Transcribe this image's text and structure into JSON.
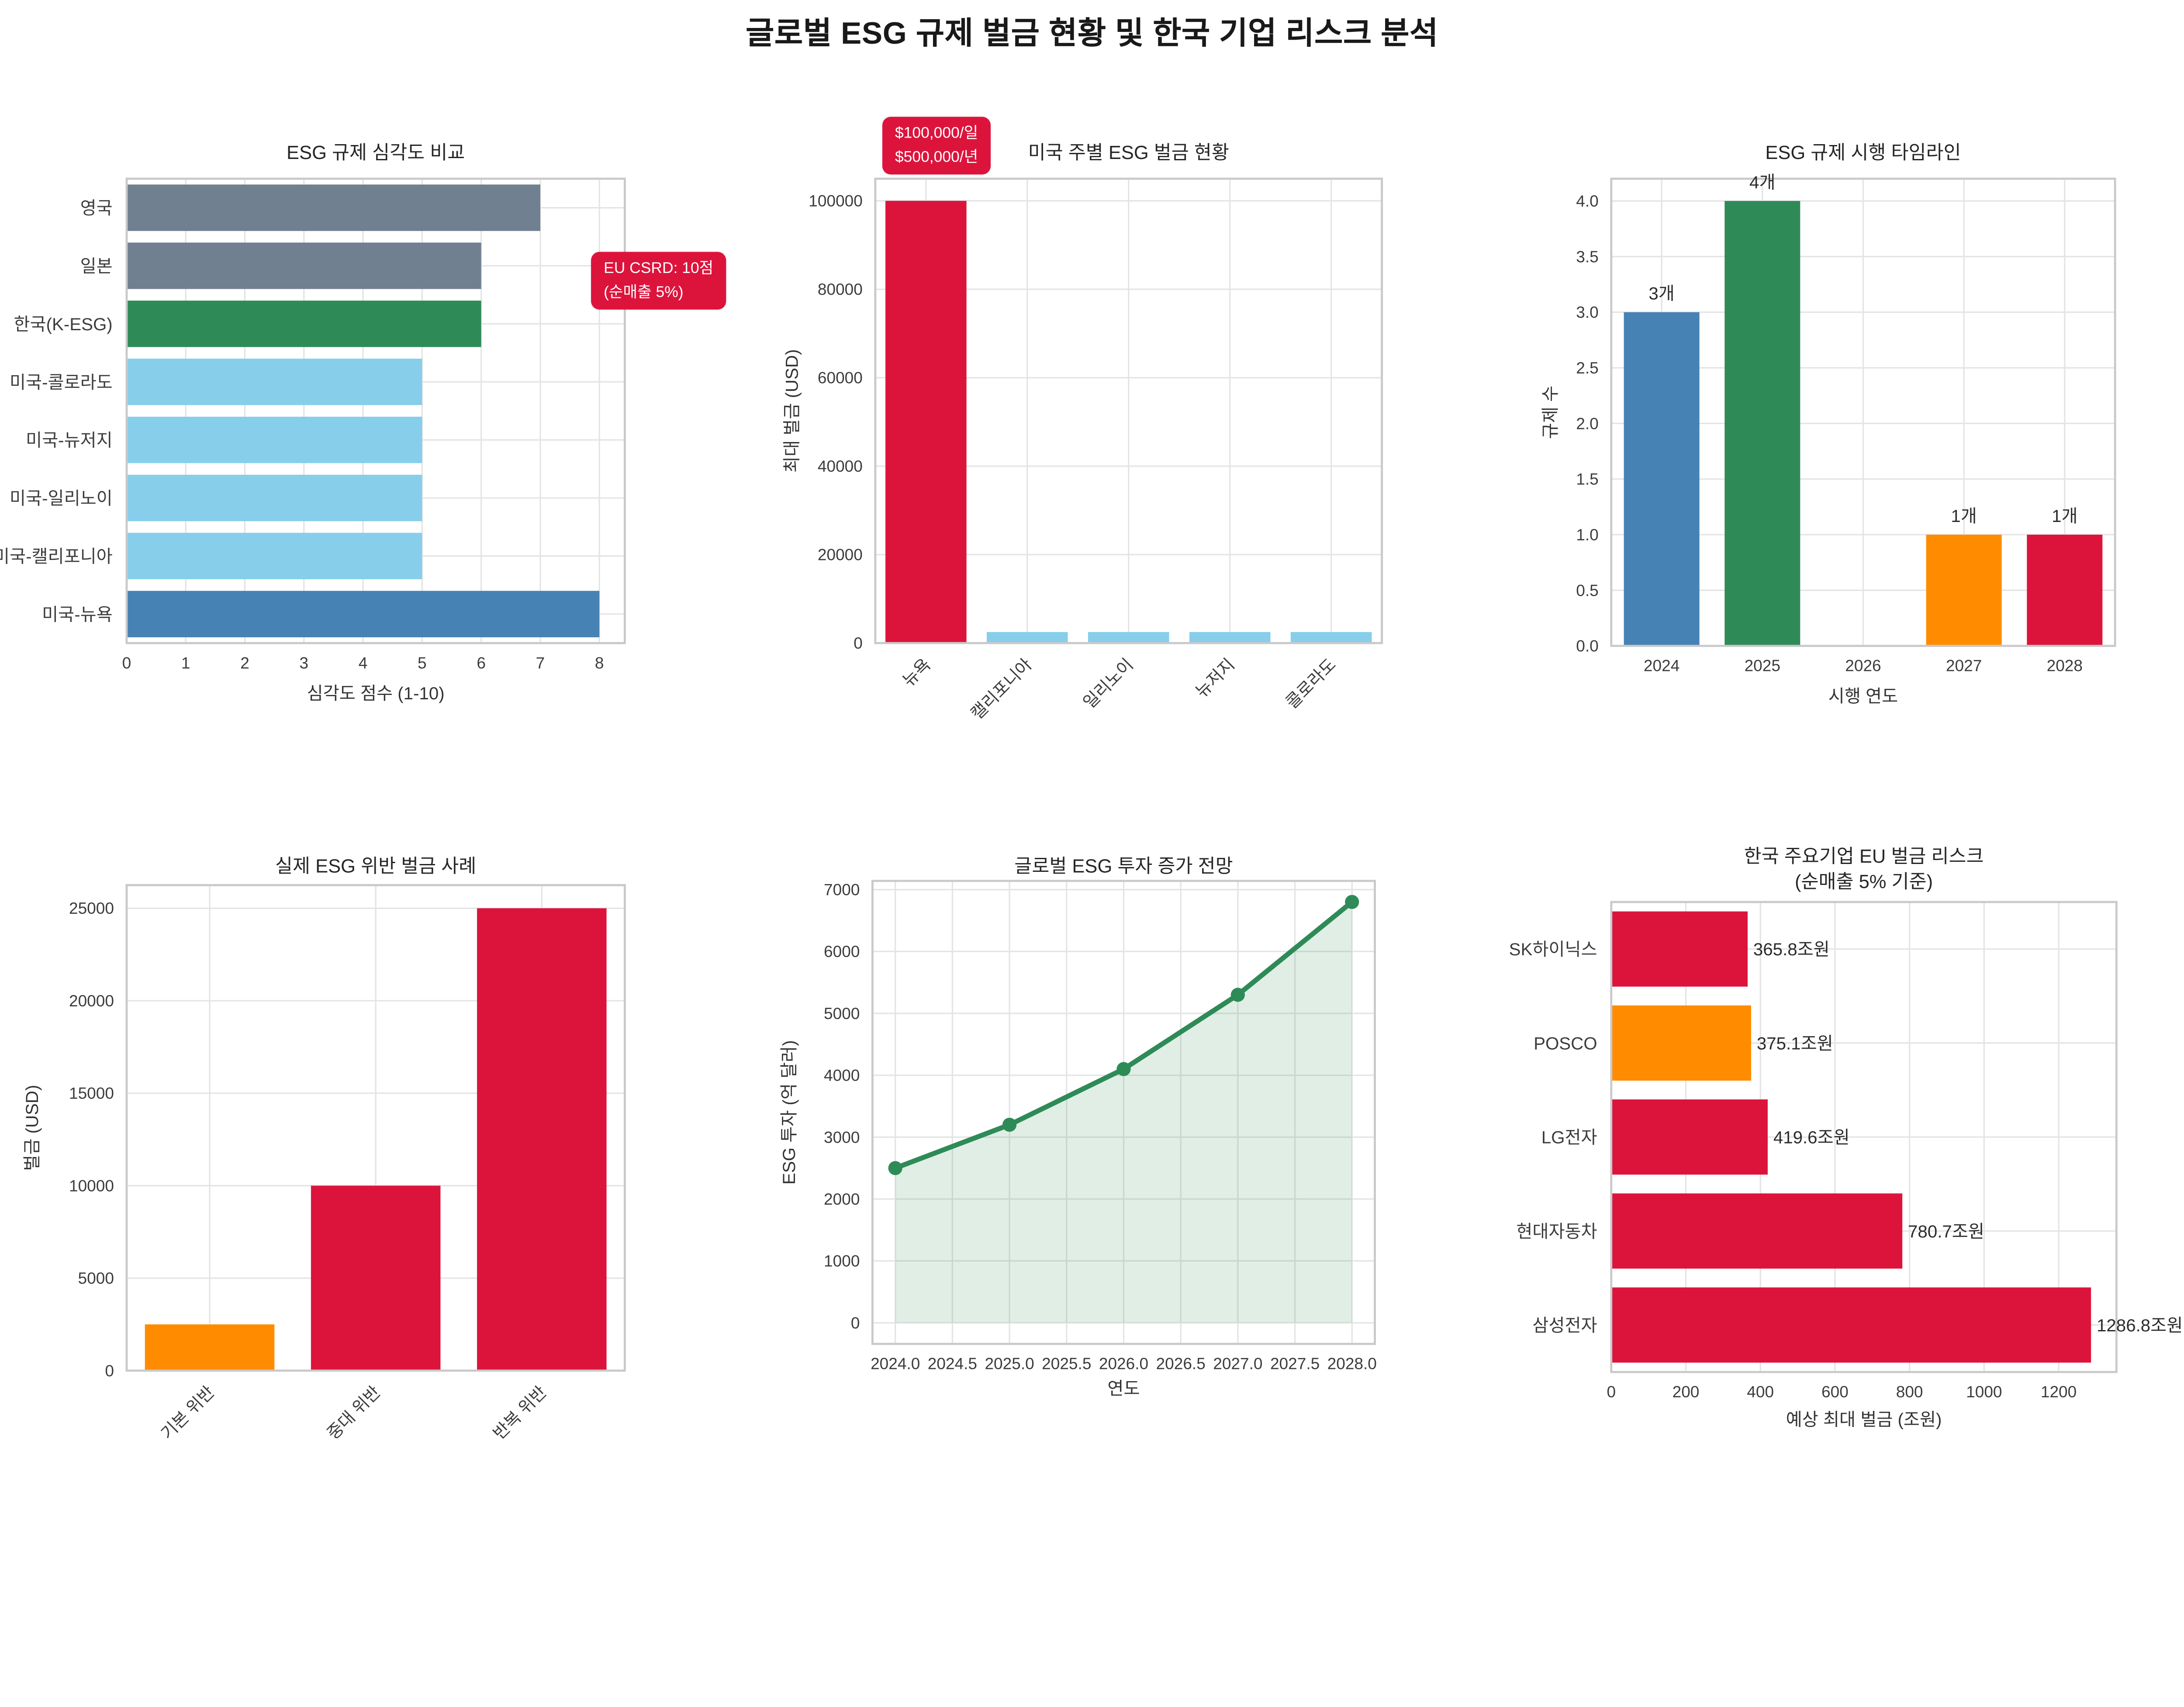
{
  "page_title": "글로벌 ESG 규제 벌금 현황 및 한국 기업 리스크 분석",
  "palette": {
    "background": "#ffffff",
    "grid": "#e4e4e4",
    "spine": "#c9c9c9",
    "tick_text": "#3c3c3c",
    "label_text": "#333333",
    "title_text": "#262626",
    "accent_red": "#DC143C",
    "accent_orange": "#FF8C00",
    "accent_green": "#2E8B57",
    "accent_steelblue": "#4682B4",
    "accent_skyblue": "#87CEEB",
    "accent_slategray": "#708090"
  },
  "chart_data": [
    {
      "type": "bar",
      "orientation": "horizontal",
      "title": "ESG 규제 심각도 비교",
      "categories": [
        "영국",
        "일본",
        "한국(K-ESG)",
        "미국-콜로라도",
        "미국-뉴저지",
        "미국-일리노이",
        "미국-캘리포니아",
        "미국-뉴욕"
      ],
      "values": [
        7,
        6,
        6,
        5,
        5,
        5,
        5,
        8
      ],
      "bar_colors": [
        "#708090",
        "#708090",
        "#2E8B57",
        "#87CEEB",
        "#87CEEB",
        "#87CEEB",
        "#87CEEB",
        "#4682B4"
      ],
      "xlabel": "심각도 점수 (1-10)",
      "xticks": [
        0,
        1,
        2,
        3,
        4,
        5,
        6,
        7,
        8
      ],
      "xtick_labels": [
        "0",
        "1",
        "2",
        "3",
        "4",
        "5",
        "6",
        "7",
        "8"
      ],
      "xlim": [
        0,
        8.43
      ],
      "grid": true,
      "annotation": {
        "line1": "EU CSRD: 10점",
        "line2": "(순매출 5%)",
        "bg": "#DC143C",
        "text_color": "#ffffff"
      }
    },
    {
      "type": "bar",
      "orientation": "vertical",
      "title": "미국 주별 ESG 벌금 현황",
      "categories": [
        "뉴욕",
        "캘리포니아",
        "일리노이",
        "뉴저지",
        "콜로라도"
      ],
      "values": [
        100000,
        2500,
        2500,
        2500,
        2500
      ],
      "bar_colors": [
        "#DC143C",
        "#87CEEB",
        "#87CEEB",
        "#87CEEB",
        "#87CEEB"
      ],
      "ylabel": "최대 벌금 (USD)",
      "yticks": [
        0,
        20000,
        40000,
        60000,
        80000,
        100000
      ],
      "ytick_labels": [
        "0",
        "20000",
        "40000",
        "60000",
        "80000",
        "100000"
      ],
      "ylim": [
        0,
        105000
      ],
      "grid": true,
      "rotate_xticks": true,
      "annotation": {
        "line1": "$100,000/일",
        "line2": "$500,000/년",
        "bg": "#DC143C",
        "text_color": "#ffffff"
      }
    },
    {
      "type": "bar",
      "orientation": "vertical",
      "title": "ESG 규제 시행 타임라인",
      "categories": [
        "2024",
        "2025",
        "2026",
        "2027",
        "2028"
      ],
      "values": [
        3,
        4,
        0,
        1,
        1
      ],
      "bar_labels": [
        "3개",
        "4개",
        "",
        "1개",
        "1개"
      ],
      "bar_colors": [
        "#4682B4",
        "#2E8B57",
        "#87CEEB",
        "#FF8C00",
        "#DC143C"
      ],
      "xlabel": "시행 연도",
      "ylabel": "규제 수",
      "yticks": [
        0,
        0.5,
        1,
        1.5,
        2,
        2.5,
        3,
        3.5,
        4
      ],
      "ytick_labels": [
        "0.0",
        "0.5",
        "1.0",
        "1.5",
        "2.0",
        "2.5",
        "3.0",
        "3.5",
        "4.0"
      ],
      "ylim": [
        0,
        4.2
      ],
      "grid": true
    },
    {
      "type": "bar",
      "orientation": "vertical",
      "title": "실제 ESG 위반 벌금 사례",
      "categories": [
        "기본 위반",
        "중대 위반",
        "반복 위반"
      ],
      "values": [
        2500,
        10000,
        25000
      ],
      "bar_colors": [
        "#FF8C00",
        "#DC143C",
        "#DC143C"
      ],
      "ylabel": "벌금 (USD)",
      "yticks": [
        0,
        5000,
        10000,
        15000,
        20000,
        25000
      ],
      "ytick_labels": [
        "0",
        "5000",
        "10000",
        "15000",
        "20000",
        "25000"
      ],
      "ylim": [
        0,
        26250
      ],
      "grid": true,
      "rotate_xticks": true
    },
    {
      "type": "line",
      "title": "글로벌 ESG 투자 증가 전망",
      "x": [
        2024,
        2025,
        2026,
        2027,
        2028
      ],
      "y": [
        2500,
        3200,
        4100,
        5300,
        6800
      ],
      "xlabel": "연도",
      "ylabel": "ESG 투자 (억 달러)",
      "xticks": [
        2024,
        2024.5,
        2025,
        2025.5,
        2026,
        2026.5,
        2027,
        2027.5,
        2028
      ],
      "xtick_labels": [
        "2024.0",
        "2024.5",
        "2025.0",
        "2025.5",
        "2026.0",
        "2026.5",
        "2027.0",
        "2027.5",
        "2028.0"
      ],
      "yticks": [
        0,
        1000,
        2000,
        3000,
        4000,
        5000,
        6000,
        7000
      ],
      "ytick_labels": [
        "0",
        "1000",
        "2000",
        "3000",
        "4000",
        "5000",
        "6000",
        "7000"
      ],
      "xlim": [
        2023.8,
        2028.2
      ],
      "ylim": [
        -340,
        7140
      ],
      "grid": true,
      "line_color": "#2E8B57",
      "fill_color": "rgba(46,139,87,0.15)",
      "marker_radius": 5
    },
    {
      "type": "bar",
      "orientation": "horizontal",
      "title": "한국 주요기업 EU 벌금 리스크",
      "subtitle": "(순매출 5% 기준)",
      "categories": [
        "SK하이닉스",
        "POSCO",
        "LG전자",
        "현대자동차",
        "삼성전자"
      ],
      "values": [
        365.8,
        375.1,
        419.6,
        780.7,
        1286.8
      ],
      "value_labels": [
        "365.8조원",
        "375.1조원",
        "419.6조원",
        "780.7조원",
        "1286.8조원"
      ],
      "bar_colors": [
        "#DC143C",
        "#FF8C00",
        "#DC143C",
        "#DC143C",
        "#DC143C"
      ],
      "xlabel": "예상 최대 벌금 (조원)",
      "xticks": [
        0,
        200,
        400,
        600,
        800,
        1000,
        1200
      ],
      "xtick_labels": [
        "0",
        "200",
        "400",
        "600",
        "800",
        "1000",
        "1200"
      ],
      "xlim": [
        0,
        1355
      ],
      "grid": true
    }
  ]
}
